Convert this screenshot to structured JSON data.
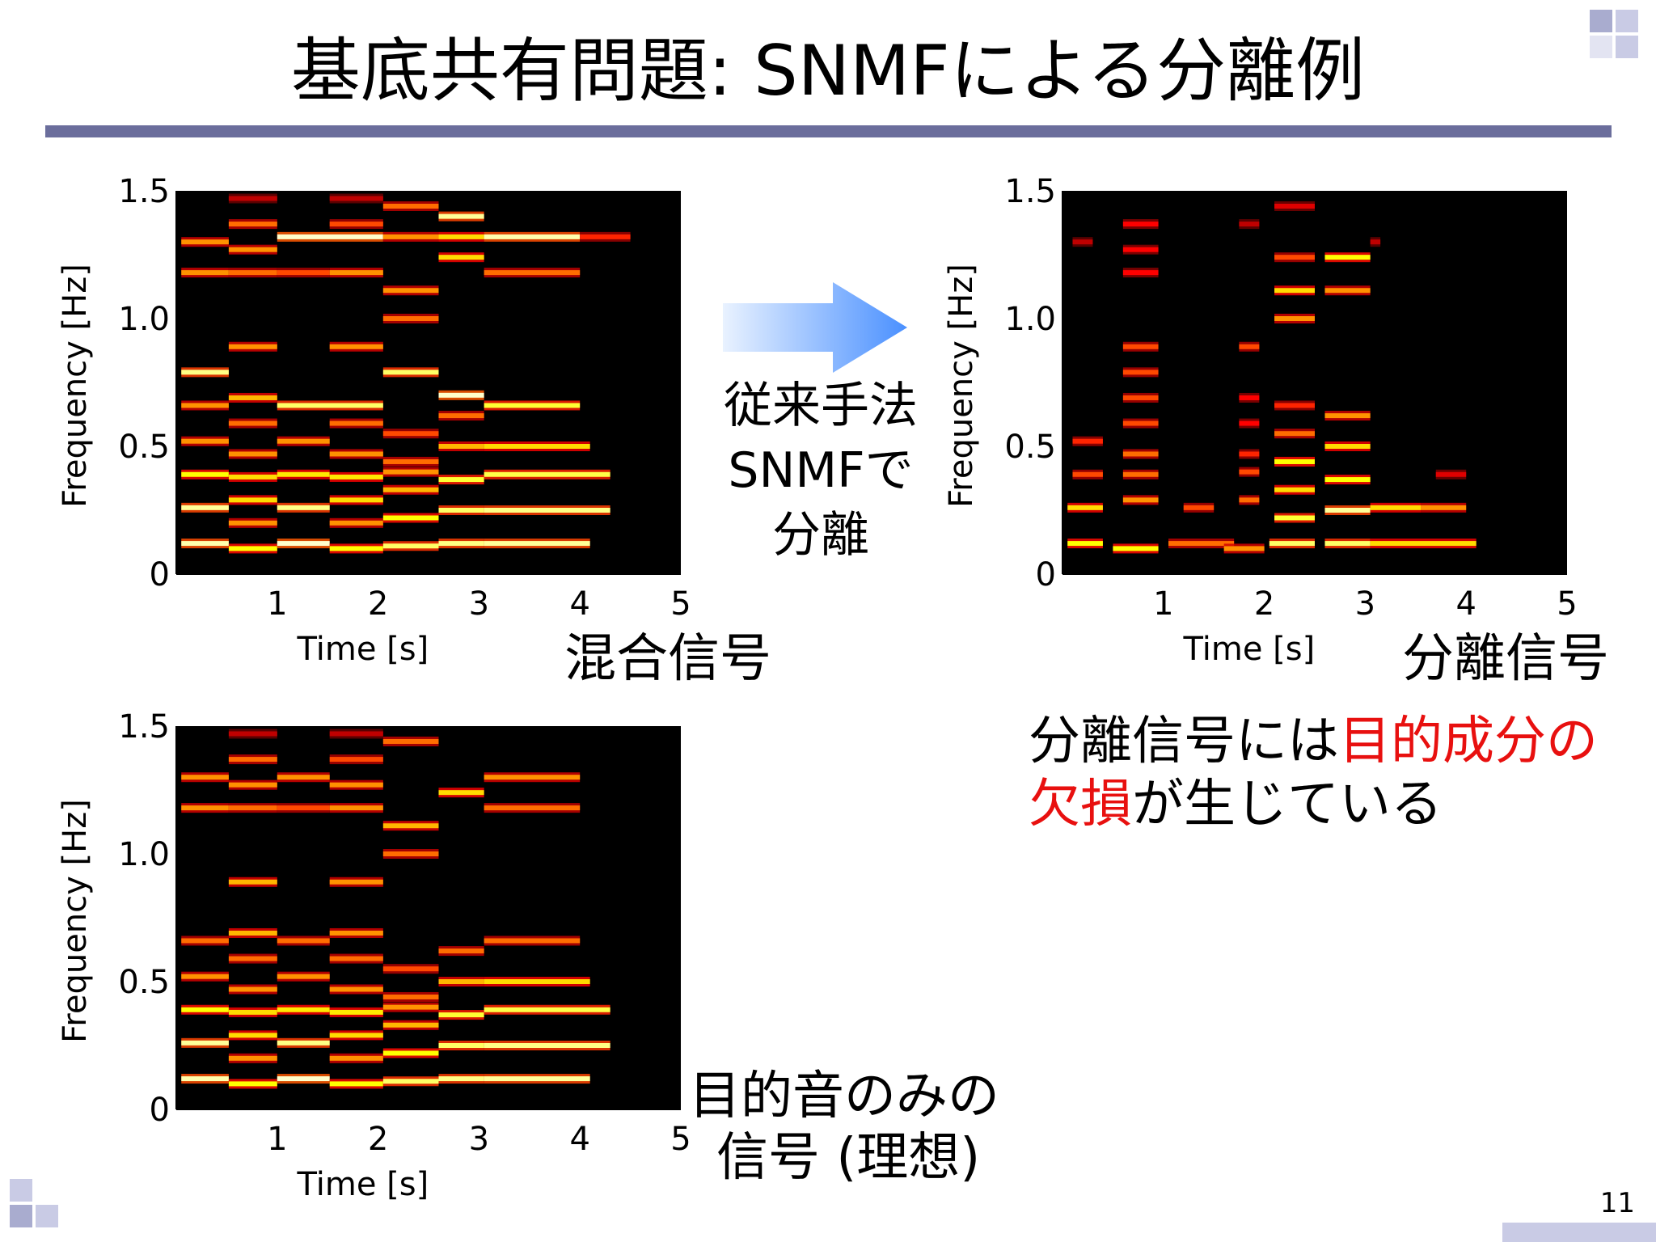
{
  "slide": {
    "title": "基底共有問題: SNMFによる分離例",
    "page_number": "11",
    "accent_color": "#6b6e9c",
    "decoration_color": "#c9cbe5"
  },
  "arrow": {
    "method_lines": [
      "従来手法",
      "SNMFで",
      "分離"
    ],
    "colors": [
      "#e9f2ff",
      "#4a90ff"
    ]
  },
  "note": {
    "segments": [
      {
        "text": "分離信号には",
        "highlight": false
      },
      {
        "text": "目的成分の欠損",
        "highlight": true
      },
      {
        "text": "が生じている",
        "highlight": false
      }
    ],
    "highlight_color": "#e8100f"
  },
  "chart_data": [
    {
      "id": "mixture",
      "type": "heatmap",
      "label_lines": [
        "混合信号"
      ],
      "xlabel": "Time [s]",
      "ylabel": "Frequency [Hz]",
      "xlim": [
        0,
        5
      ],
      "ylim": [
        0,
        1.5
      ],
      "x_ticks": [
        "1",
        "2",
        "3",
        "4",
        "5"
      ],
      "y_ticks": [
        "0",
        "0.5",
        "1.0",
        "1.5"
      ],
      "colormap": "hot",
      "segments": [
        [
          0.05,
          0.52,
          0.12,
          0.92
        ],
        [
          0.52,
          1.0,
          0.1,
          0.75
        ],
        [
          1.0,
          1.52,
          0.12,
          0.95
        ],
        [
          1.52,
          2.05,
          0.1,
          0.75
        ],
        [
          2.05,
          2.6,
          0.11,
          0.85
        ],
        [
          2.6,
          3.05,
          0.12,
          0.88
        ],
        [
          3.05,
          4.1,
          0.12,
          0.9
        ],
        [
          0.05,
          0.52,
          0.26,
          0.9
        ],
        [
          0.52,
          1.0,
          0.2,
          0.6
        ],
        [
          1.0,
          1.52,
          0.26,
          0.88
        ],
        [
          1.52,
          2.05,
          0.2,
          0.6
        ],
        [
          2.05,
          2.6,
          0.22,
          0.75
        ],
        [
          2.6,
          3.05,
          0.25,
          0.85
        ],
        [
          3.05,
          4.3,
          0.25,
          0.88
        ],
        [
          0.52,
          1.0,
          0.29,
          0.7
        ],
        [
          1.52,
          2.05,
          0.29,
          0.7
        ],
        [
          2.05,
          2.6,
          0.33,
          0.65
        ],
        [
          0.05,
          0.52,
          0.39,
          0.75
        ],
        [
          0.52,
          1.0,
          0.38,
          0.7
        ],
        [
          1.0,
          1.52,
          0.39,
          0.72
        ],
        [
          1.52,
          2.05,
          0.38,
          0.72
        ],
        [
          2.05,
          2.6,
          0.4,
          0.6
        ],
        [
          2.6,
          3.05,
          0.37,
          0.8
        ],
        [
          3.05,
          4.3,
          0.39,
          0.82
        ],
        [
          0.52,
          1.0,
          0.47,
          0.6
        ],
        [
          1.52,
          2.05,
          0.47,
          0.6
        ],
        [
          2.05,
          2.6,
          0.44,
          0.55
        ],
        [
          2.6,
          3.05,
          0.5,
          0.65
        ],
        [
          3.05,
          4.1,
          0.5,
          0.7
        ],
        [
          0.05,
          0.52,
          0.52,
          0.6
        ],
        [
          1.0,
          1.52,
          0.52,
          0.6
        ],
        [
          2.05,
          2.6,
          0.55,
          0.5
        ],
        [
          0.52,
          1.0,
          0.59,
          0.55
        ],
        [
          1.52,
          2.05,
          0.59,
          0.55
        ],
        [
          2.6,
          3.05,
          0.62,
          0.55
        ],
        [
          0.05,
          0.52,
          0.66,
          0.6
        ],
        [
          1.0,
          2.05,
          0.66,
          0.85
        ],
        [
          0.52,
          1.0,
          0.69,
          0.65
        ],
        [
          2.6,
          3.05,
          0.7,
          0.95
        ],
        [
          3.05,
          4.0,
          0.66,
          0.8
        ],
        [
          0.05,
          0.52,
          0.79,
          0.88
        ],
        [
          2.05,
          2.6,
          0.79,
          0.85
        ],
        [
          0.52,
          1.0,
          0.89,
          0.6
        ],
        [
          1.52,
          2.05,
          0.89,
          0.6
        ],
        [
          2.05,
          2.6,
          1.0,
          0.55
        ],
        [
          2.05,
          2.6,
          1.11,
          0.6
        ],
        [
          0.05,
          0.52,
          1.18,
          0.6
        ],
        [
          0.52,
          1.0,
          1.18,
          0.55
        ],
        [
          1.0,
          1.52,
          1.18,
          0.5
        ],
        [
          1.52,
          2.05,
          1.18,
          0.6
        ],
        [
          2.6,
          3.05,
          1.24,
          0.7
        ],
        [
          3.05,
          4.0,
          1.18,
          0.55
        ],
        [
          0.05,
          0.52,
          1.3,
          0.6
        ],
        [
          0.52,
          1.0,
          1.27,
          0.6
        ],
        [
          1.0,
          2.05,
          1.32,
          0.95
        ],
        [
          2.05,
          2.6,
          1.32,
          0.6
        ],
        [
          2.6,
          3.05,
          1.32,
          0.7
        ],
        [
          3.05,
          4.0,
          1.32,
          0.92
        ],
        [
          4.0,
          4.5,
          1.32,
          0.45
        ],
        [
          0.52,
          1.0,
          1.37,
          0.55
        ],
        [
          1.52,
          2.05,
          1.37,
          0.5
        ],
        [
          2.6,
          3.05,
          1.4,
          0.9
        ],
        [
          2.05,
          2.6,
          1.44,
          0.55
        ],
        [
          0.52,
          1.0,
          1.47,
          0.3
        ],
        [
          1.52,
          2.05,
          1.47,
          0.3
        ]
      ]
    },
    {
      "id": "separated",
      "type": "heatmap",
      "label_lines": [
        "分離信号"
      ],
      "xlabel": "Time [s]",
      "ylabel": "Frequency [Hz]",
      "xlim": [
        0,
        5
      ],
      "ylim": [
        0,
        1.5
      ],
      "x_ticks": [
        "1",
        "2",
        "3",
        "4",
        "5"
      ],
      "y_ticks": [
        "0",
        "0.5",
        "1.0",
        "1.5"
      ],
      "colormap": "hot",
      "segments": [
        [
          0.05,
          0.4,
          0.12,
          0.75
        ],
        [
          0.5,
          0.95,
          0.1,
          0.75
        ],
        [
          1.05,
          1.7,
          0.12,
          0.55
        ],
        [
          1.6,
          2.0,
          0.1,
          0.6
        ],
        [
          2.05,
          2.5,
          0.12,
          0.85
        ],
        [
          2.6,
          3.05,
          0.12,
          0.85
        ],
        [
          3.05,
          4.1,
          0.12,
          0.7
        ],
        [
          0.05,
          0.4,
          0.26,
          0.7
        ],
        [
          0.6,
          0.95,
          0.29,
          0.6
        ],
        [
          1.2,
          1.5,
          0.26,
          0.5
        ],
        [
          1.75,
          1.95,
          0.29,
          0.55
        ],
        [
          2.1,
          2.5,
          0.22,
          0.8
        ],
        [
          2.6,
          3.05,
          0.25,
          0.9
        ],
        [
          3.05,
          3.55,
          0.26,
          0.7
        ],
        [
          3.55,
          4.0,
          0.26,
          0.6
        ],
        [
          0.1,
          0.4,
          0.39,
          0.5
        ],
        [
          0.6,
          0.95,
          0.39,
          0.55
        ],
        [
          1.75,
          1.95,
          0.4,
          0.5
        ],
        [
          2.1,
          2.5,
          0.33,
          0.7
        ],
        [
          2.6,
          3.05,
          0.37,
          0.75
        ],
        [
          3.7,
          4.0,
          0.39,
          0.35
        ],
        [
          0.6,
          0.95,
          0.47,
          0.55
        ],
        [
          1.75,
          1.95,
          0.47,
          0.45
        ],
        [
          2.1,
          2.5,
          0.44,
          0.75
        ],
        [
          2.6,
          3.05,
          0.5,
          0.7
        ],
        [
          0.1,
          0.4,
          0.52,
          0.45
        ],
        [
          0.6,
          0.95,
          0.59,
          0.5
        ],
        [
          1.75,
          1.95,
          0.59,
          0.4
        ],
        [
          2.1,
          2.5,
          0.55,
          0.55
        ],
        [
          2.6,
          3.05,
          0.62,
          0.6
        ],
        [
          0.6,
          0.95,
          0.69,
          0.5
        ],
        [
          1.75,
          1.95,
          0.69,
          0.4
        ],
        [
          2.1,
          2.5,
          0.66,
          0.45
        ],
        [
          0.6,
          0.95,
          0.79,
          0.5
        ],
        [
          1.75,
          1.95,
          0.89,
          0.5
        ],
        [
          0.6,
          0.95,
          0.89,
          0.5
        ],
        [
          2.1,
          2.5,
          1.0,
          0.6
        ],
        [
          2.1,
          2.5,
          1.11,
          0.7
        ],
        [
          2.6,
          3.05,
          1.11,
          0.6
        ],
        [
          2.6,
          3.05,
          1.24,
          0.75
        ],
        [
          0.6,
          0.95,
          1.18,
          0.4
        ],
        [
          0.6,
          0.95,
          1.27,
          0.4
        ],
        [
          0.6,
          0.95,
          1.37,
          0.4
        ],
        [
          0.1,
          0.3,
          1.3,
          0.3
        ],
        [
          2.1,
          2.5,
          1.24,
          0.5
        ],
        [
          2.1,
          2.5,
          1.44,
          0.35
        ],
        [
          1.75,
          1.95,
          1.37,
          0.3
        ],
        [
          3.05,
          3.15,
          1.3,
          0.3
        ]
      ]
    },
    {
      "id": "target",
      "type": "heatmap",
      "label_lines": [
        "目的音のみの",
        "信号 (理想)"
      ],
      "xlabel": "Time [s]",
      "ylabel": "Frequency [Hz]",
      "xlim": [
        0,
        5
      ],
      "ylim": [
        0,
        1.5
      ],
      "x_ticks": [
        "1",
        "2",
        "3",
        "4",
        "5"
      ],
      "y_ticks": [
        "0",
        "0.5",
        "1.0",
        "1.5"
      ],
      "colormap": "hot",
      "segments": [
        [
          0.05,
          0.52,
          0.12,
          0.92
        ],
        [
          0.52,
          1.0,
          0.1,
          0.75
        ],
        [
          1.0,
          1.52,
          0.12,
          0.95
        ],
        [
          1.52,
          2.05,
          0.1,
          0.75
        ],
        [
          2.05,
          2.6,
          0.11,
          0.85
        ],
        [
          2.6,
          3.05,
          0.12,
          0.88
        ],
        [
          3.05,
          4.1,
          0.12,
          0.9
        ],
        [
          0.05,
          0.52,
          0.26,
          0.9
        ],
        [
          0.52,
          1.0,
          0.2,
          0.6
        ],
        [
          1.0,
          1.52,
          0.26,
          0.88
        ],
        [
          1.52,
          2.05,
          0.2,
          0.6
        ],
        [
          2.05,
          2.6,
          0.22,
          0.75
        ],
        [
          2.6,
          3.05,
          0.25,
          0.85
        ],
        [
          3.05,
          4.3,
          0.25,
          0.88
        ],
        [
          0.52,
          1.0,
          0.29,
          0.7
        ],
        [
          1.52,
          2.05,
          0.29,
          0.7
        ],
        [
          2.05,
          2.6,
          0.33,
          0.65
        ],
        [
          0.05,
          0.52,
          0.39,
          0.75
        ],
        [
          0.52,
          1.0,
          0.38,
          0.7
        ],
        [
          1.0,
          1.52,
          0.39,
          0.72
        ],
        [
          1.52,
          2.05,
          0.38,
          0.72
        ],
        [
          2.05,
          2.6,
          0.4,
          0.6
        ],
        [
          2.6,
          3.05,
          0.37,
          0.8
        ],
        [
          3.05,
          4.3,
          0.39,
          0.82
        ],
        [
          0.52,
          1.0,
          0.47,
          0.6
        ],
        [
          1.52,
          2.05,
          0.47,
          0.6
        ],
        [
          2.05,
          2.6,
          0.44,
          0.55
        ],
        [
          2.6,
          3.05,
          0.5,
          0.65
        ],
        [
          3.05,
          4.1,
          0.5,
          0.7
        ],
        [
          0.05,
          0.52,
          0.52,
          0.6
        ],
        [
          1.0,
          1.52,
          0.52,
          0.6
        ],
        [
          2.05,
          2.6,
          0.55,
          0.5
        ],
        [
          0.52,
          1.0,
          0.59,
          0.55
        ],
        [
          1.52,
          2.05,
          0.59,
          0.55
        ],
        [
          2.6,
          3.05,
          0.62,
          0.55
        ],
        [
          0.05,
          0.52,
          0.66,
          0.55
        ],
        [
          1.0,
          1.52,
          0.66,
          0.55
        ],
        [
          0.52,
          1.0,
          0.69,
          0.65
        ],
        [
          1.52,
          2.05,
          0.69,
          0.6
        ],
        [
          3.05,
          4.0,
          0.66,
          0.55
        ],
        [
          0.52,
          1.0,
          0.89,
          0.65
        ],
        [
          1.52,
          2.05,
          0.89,
          0.6
        ],
        [
          2.05,
          2.6,
          1.0,
          0.55
        ],
        [
          2.05,
          2.6,
          1.11,
          0.65
        ],
        [
          0.05,
          0.52,
          1.18,
          0.6
        ],
        [
          0.52,
          1.0,
          1.18,
          0.55
        ],
        [
          1.0,
          1.52,
          1.18,
          0.5
        ],
        [
          1.52,
          2.05,
          1.18,
          0.6
        ],
        [
          2.6,
          3.05,
          1.24,
          0.7
        ],
        [
          3.05,
          4.0,
          1.18,
          0.55
        ],
        [
          0.05,
          0.52,
          1.3,
          0.6
        ],
        [
          0.52,
          1.0,
          1.27,
          0.6
        ],
        [
          1.0,
          1.52,
          1.3,
          0.6
        ],
        [
          1.52,
          2.05,
          1.27,
          0.6
        ],
        [
          3.05,
          4.0,
          1.3,
          0.6
        ],
        [
          0.52,
          1.0,
          1.37,
          0.55
        ],
        [
          1.52,
          2.05,
          1.37,
          0.5
        ],
        [
          2.05,
          2.6,
          1.44,
          0.55
        ],
        [
          0.52,
          1.0,
          1.47,
          0.3
        ],
        [
          1.52,
          2.05,
          1.47,
          0.3
        ]
      ]
    }
  ]
}
